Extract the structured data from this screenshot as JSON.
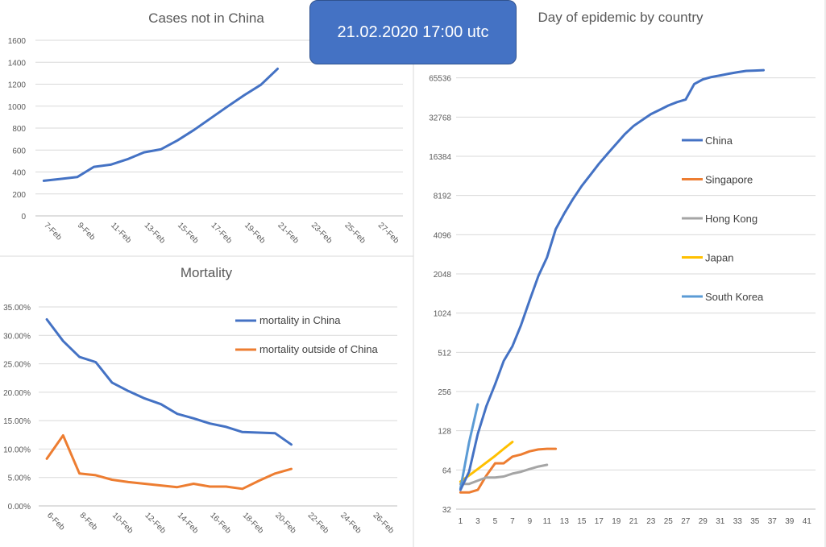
{
  "banner": {
    "text": "21.02.2020 17:00 utc"
  },
  "chart_data": [
    {
      "id": "cases",
      "type": "line",
      "title": "Cases not in China",
      "xlabel": "",
      "ylabel": "",
      "x_tick_labels": [
        "7-Feb",
        "9-Feb",
        "11-Feb",
        "13-Feb",
        "15-Feb",
        "17-Feb",
        "19-Feb",
        "21-Feb",
        "23-Feb",
        "25-Feb",
        "27-Feb"
      ],
      "y_tick_labels": [
        "0",
        "200",
        "400",
        "600",
        "800",
        "1000",
        "1200",
        "1400",
        "1600"
      ],
      "ylim": [
        0,
        1600
      ],
      "grid": true,
      "colors": {
        "series": "#4472c4"
      },
      "series": [
        {
          "values": [
            320,
            337,
            354,
            447,
            467,
            516,
            579,
            606,
            688,
            784,
            890,
            997,
            1100,
            1195,
            1340
          ]
        }
      ],
      "dates": [
        "7-Feb",
        "8-Feb",
        "9-Feb",
        "10-Feb",
        "11-Feb",
        "12-Feb",
        "13-Feb",
        "14-Feb",
        "15-Feb",
        "16-Feb",
        "17-Feb",
        "18-Feb",
        "19-Feb",
        "20-Feb",
        "21-Feb"
      ]
    },
    {
      "id": "mortality",
      "type": "line",
      "title": "Mortality",
      "xlabel": "",
      "ylabel": "",
      "x_tick_labels": [
        "6-Feb",
        "8-Feb",
        "10-Feb",
        "12-Feb",
        "14-Feb",
        "16-Feb",
        "18-Feb",
        "20-Feb",
        "22-Feb",
        "24-Feb",
        "26-Feb"
      ],
      "y_tick_labels": [
        "0.00%",
        "5.00%",
        "10.00%",
        "15.00%",
        "20.00%",
        "25.00%",
        "30.00%",
        "35.00%"
      ],
      "ylim": [
        0,
        0.35
      ],
      "grid": true,
      "legend": "top-right",
      "dates": [
        "6-Feb",
        "7-Feb",
        "8-Feb",
        "9-Feb",
        "10-Feb",
        "11-Feb",
        "12-Feb",
        "13-Feb",
        "14-Feb",
        "15-Feb",
        "16-Feb",
        "17-Feb",
        "18-Feb",
        "19-Feb",
        "20-Feb",
        "21-Feb"
      ],
      "series": [
        {
          "name": "mortality in China",
          "color": "#4472c4",
          "values": [
            0.328,
            0.29,
            0.262,
            0.253,
            0.217,
            0.202,
            0.189,
            0.179,
            0.162,
            0.154,
            0.145,
            0.139,
            0.13,
            0.129,
            0.128,
            0.108
          ]
        },
        {
          "name": "mortality outside of China",
          "color": "#ed7d31",
          "values": [
            0.083,
            0.124,
            0.057,
            0.054,
            0.046,
            0.042,
            0.039,
            0.036,
            0.033,
            0.039,
            0.034,
            0.034,
            0.03,
            0.044,
            0.057,
            0.065
          ]
        }
      ]
    },
    {
      "id": "epidemic",
      "type": "line",
      "title": "Day of epidemic by country",
      "xlabel": "",
      "ylabel": "",
      "yscale": "log2",
      "x_tick_labels": [
        "1",
        "3",
        "5",
        "7",
        "9",
        "11",
        "13",
        "15",
        "17",
        "19",
        "21",
        "23",
        "25",
        "27",
        "29",
        "31",
        "33",
        "35",
        "37",
        "39",
        "41"
      ],
      "y_tick_labels": [
        "32",
        "64",
        "128",
        "256",
        "512",
        "1024",
        "2048",
        "4096",
        "8192",
        "16384",
        "32768",
        "65536"
      ],
      "ylim": [
        32,
        131072
      ],
      "xlim": [
        1,
        42
      ],
      "grid": true,
      "legend": "right",
      "series": [
        {
          "name": "China",
          "color": "#4472c4",
          "x": [
            1,
            2,
            3,
            4,
            5,
            6,
            7,
            8,
            9,
            10,
            11,
            12,
            13,
            14,
            15,
            16,
            17,
            18,
            19,
            20,
            21,
            22,
            23,
            24,
            25,
            26,
            27,
            28,
            29,
            30,
            31,
            32,
            33,
            34,
            35,
            36
          ],
          "values": [
            45,
            62,
            121,
            198,
            291,
            440,
            571,
            830,
            1287,
            1975,
            2744,
            4515,
            5974,
            7711,
            9692,
            11791,
            14380,
            17205,
            20438,
            24324,
            28018,
            31161,
            34546,
            37198,
            40171,
            42638,
            44653,
            58761,
            63851,
            66492,
            68500,
            70548,
            72436,
            74185,
            74576,
            75077
          ]
        },
        {
          "name": "Singapore",
          "color": "#ed7d31",
          "x": [
            1,
            2,
            3,
            4,
            5,
            6,
            7,
            8,
            9,
            10,
            11,
            12
          ],
          "values": [
            43,
            43,
            45,
            58,
            72,
            72,
            81,
            84,
            89,
            92,
            93,
            93
          ]
        },
        {
          "name": "Hong Kong",
          "color": "#a5a5a5",
          "x": [
            1,
            2,
            3,
            4,
            5,
            6,
            7,
            8,
            9,
            10,
            11
          ],
          "values": [
            50,
            50,
            53,
            56,
            56,
            57,
            60,
            62,
            65,
            68,
            70
          ]
        },
        {
          "name": "Japan",
          "color": "#ffc000",
          "x": [
            1,
            2,
            3,
            4,
            5,
            6,
            7
          ],
          "values": [
            52,
            58,
            65,
            73,
            82,
            93,
            105
          ]
        },
        {
          "name": "South Korea",
          "color": "#5b9bd5",
          "x": [
            1,
            2,
            3
          ],
          "values": [
            46,
            104,
            204
          ]
        }
      ]
    }
  ]
}
